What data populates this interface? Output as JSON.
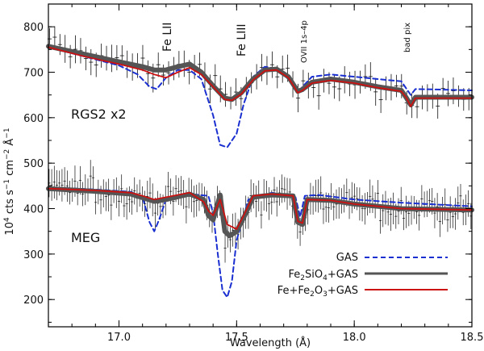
{
  "chart_data": {
    "type": "line",
    "title": "",
    "xlabel": "Wavelength (Å)",
    "ylabel_parts": {
      "pre": "10",
      "exp4": "4",
      "mid": " cts s",
      "expm1a": "−1",
      "cm": " cm",
      "expm2": "−2",
      "ang": " Å",
      "expm1b": "−1"
    },
    "xlim": [
      16.7,
      18.5
    ],
    "ylim": [
      140,
      850
    ],
    "xticks": [
      17.0,
      17.5,
      18.0,
      18.5
    ],
    "xtick_labels": [
      "17.0",
      "17.5",
      "18.0",
      "18.5"
    ],
    "yticks": [
      200,
      300,
      400,
      500,
      600,
      700,
      800
    ],
    "ytick_labels": [
      "200",
      "300",
      "400",
      "500",
      "600",
      "700",
      "800"
    ],
    "panel_labels": [
      "RGS2 x2",
      "MEG"
    ],
    "annotations": [
      "Fe LII",
      "Fe LIII",
      "OVII 1s–4p",
      "bad pix"
    ],
    "legend": {
      "position": "bottom-right",
      "entries": [
        {
          "label": "GAS",
          "style": "dashed",
          "color": "#1a2fd0"
        },
        {
          "label": "Fe2SiO4+GAS",
          "style": "solid",
          "color": "#555555"
        },
        {
          "label": "Fe+Fe2O3+GAS",
          "style": "solid",
          "color": "#cc1111"
        }
      ]
    },
    "series": [
      {
        "name": "RGS2 GAS",
        "color": "#1a2fd0",
        "style": "dashed",
        "x": [
          16.7,
          16.85,
          17.0,
          17.08,
          17.13,
          17.16,
          17.2,
          17.25,
          17.3,
          17.35,
          17.4,
          17.43,
          17.46,
          17.5,
          17.53,
          17.57,
          17.62,
          17.67,
          17.72,
          17.76,
          17.78,
          17.82,
          17.9,
          18.0,
          18.1,
          18.2,
          18.22,
          18.24,
          18.26,
          18.35,
          18.5
        ],
        "y": [
          755,
          735,
          715,
          695,
          668,
          663,
          688,
          705,
          705,
          685,
          605,
          540,
          535,
          565,
          630,
          690,
          712,
          708,
          685,
          655,
          668,
          690,
          695,
          690,
          685,
          680,
          665,
          650,
          663,
          662,
          660
        ]
      },
      {
        "name": "RGS2 Fe2SiO4+GAS",
        "color": "#555555",
        "style": "solid",
        "x": [
          16.7,
          16.85,
          17.0,
          17.1,
          17.15,
          17.2,
          17.25,
          17.3,
          17.35,
          17.4,
          17.45,
          17.48,
          17.52,
          17.57,
          17.62,
          17.67,
          17.72,
          17.76,
          17.78,
          17.82,
          17.9,
          18.0,
          18.1,
          18.2,
          18.22,
          18.24,
          18.26,
          18.35,
          18.5
        ],
        "y": [
          757,
          740,
          723,
          712,
          705,
          705,
          712,
          718,
          700,
          670,
          643,
          640,
          655,
          685,
          705,
          707,
          690,
          658,
          662,
          678,
          685,
          678,
          668,
          660,
          645,
          628,
          645,
          645,
          645
        ]
      },
      {
        "name": "RGS2 Fe+Fe2O3+GAS",
        "color": "#cc1111",
        "style": "solid",
        "x": [
          16.7,
          16.85,
          17.0,
          17.1,
          17.15,
          17.2,
          17.25,
          17.3,
          17.35,
          17.4,
          17.45,
          17.48,
          17.52,
          17.57,
          17.62,
          17.67,
          17.72,
          17.76,
          17.78,
          17.82,
          17.9,
          18.0,
          18.1,
          18.2,
          18.22,
          18.24,
          18.26,
          18.35,
          18.5
        ],
        "y": [
          755,
          735,
          718,
          705,
          695,
          688,
          700,
          710,
          695,
          668,
          640,
          638,
          652,
          683,
          703,
          705,
          688,
          655,
          660,
          676,
          682,
          676,
          666,
          658,
          645,
          625,
          643,
          643,
          643
        ]
      },
      {
        "name": "MEG GAS",
        "color": "#1a2fd0",
        "style": "dashed",
        "x": [
          16.7,
          16.9,
          17.05,
          17.1,
          17.13,
          17.15,
          17.17,
          17.2,
          17.3,
          17.38,
          17.4,
          17.42,
          17.44,
          17.46,
          17.48,
          17.5,
          17.55,
          17.65,
          17.75,
          17.77,
          17.79,
          17.85,
          18.0,
          18.2,
          18.5
        ],
        "y": [
          447,
          442,
          437,
          425,
          370,
          350,
          375,
          420,
          432,
          428,
          390,
          300,
          220,
          205,
          240,
          330,
          420,
          435,
          425,
          382,
          428,
          430,
          420,
          413,
          405
        ]
      },
      {
        "name": "MEG Fe2SiO4+GAS",
        "color": "#555555",
        "style": "solid",
        "x": [
          16.7,
          16.9,
          17.05,
          17.1,
          17.15,
          17.2,
          17.3,
          17.36,
          17.38,
          17.4,
          17.43,
          17.45,
          17.47,
          17.5,
          17.53,
          17.57,
          17.65,
          17.74,
          17.76,
          17.78,
          17.8,
          17.9,
          18.0,
          18.2,
          18.5
        ],
        "y": [
          444,
          438,
          432,
          424,
          416,
          420,
          432,
          420,
          385,
          375,
          430,
          350,
          340,
          350,
          380,
          425,
          430,
          428,
          370,
          365,
          420,
          418,
          410,
          400,
          397
        ]
      },
      {
        "name": "MEG Fe+Fe2O3+GAS",
        "color": "#cc1111",
        "style": "solid",
        "x": [
          16.7,
          16.9,
          17.05,
          17.1,
          17.15,
          17.2,
          17.3,
          17.36,
          17.38,
          17.4,
          17.43,
          17.46,
          17.48,
          17.5,
          17.53,
          17.57,
          17.65,
          17.74,
          17.76,
          17.78,
          17.8,
          17.9,
          18.0,
          18.2,
          18.5
        ],
        "y": [
          444,
          440,
          435,
          428,
          420,
          425,
          435,
          415,
          395,
          385,
          420,
          365,
          360,
          355,
          385,
          428,
          432,
          428,
          372,
          368,
          420,
          418,
          410,
          400,
          397
        ]
      }
    ]
  }
}
